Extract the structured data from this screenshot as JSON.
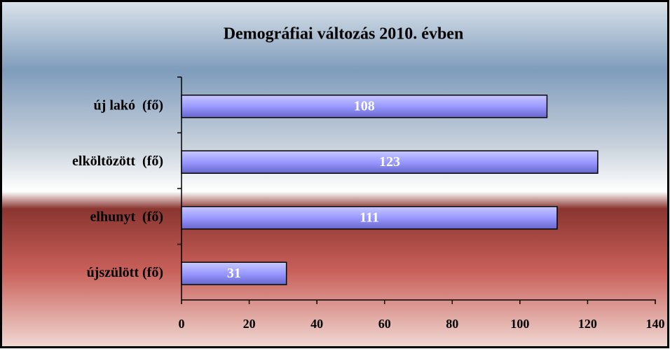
{
  "chart_data": {
    "type": "bar",
    "orientation": "horizontal",
    "title": "Demográfiai változás 2010. évben",
    "categories": [
      "új lakó  (fő)",
      "elköltözött  (fő)",
      "elhunyt  (fő)",
      "újszülött (fő)"
    ],
    "values": [
      108,
      123,
      111,
      31
    ],
    "color": "#9999ff",
    "xlim": [
      0,
      140
    ],
    "xticks": [
      0,
      20,
      40,
      60,
      80,
      100,
      120,
      140
    ]
  }
}
